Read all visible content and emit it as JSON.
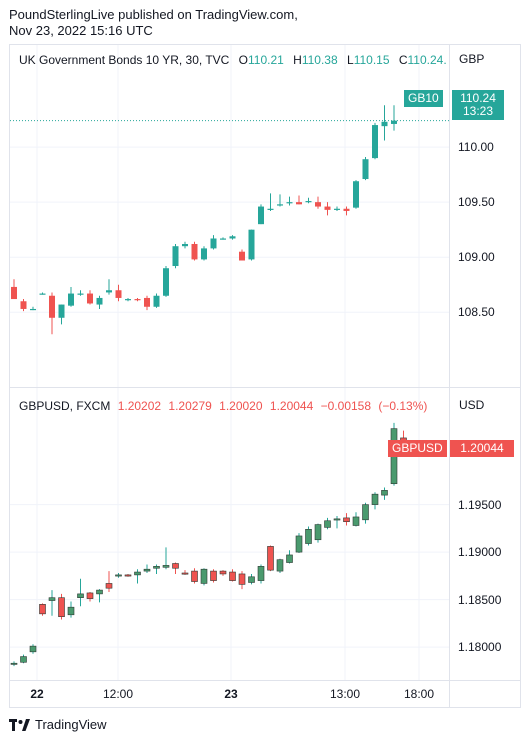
{
  "header": {
    "line1": "PoundSterlingLive published on TradingView.com,",
    "line2": "Nov 23, 2022 15:16 UTC"
  },
  "footer": {
    "brand": "TradingView",
    "logo_icon": "tradingview-logo-icon"
  },
  "colors": {
    "up": "#26a69a",
    "down": "#ef5350",
    "grid": "#f0f3fa",
    "border": "#e0e3eb"
  },
  "x_axis": {
    "labels": [
      {
        "text": "22",
        "bold": true
      },
      {
        "text": "12:00",
        "bold": false
      },
      {
        "text": "23",
        "bold": true
      },
      {
        "text": "13:00",
        "bold": false
      },
      {
        "text": "18:00",
        "bold": false
      }
    ]
  },
  "panes": {
    "top": {
      "symbol": "UK Government Bonds 10 YR, 30, TVC",
      "ohlc": {
        "o_label": "O",
        "o": "110.21",
        "h_label": "H",
        "h": "110.38",
        "l_label": "L",
        "l": "110.15",
        "c_label": "C",
        "c": "110.24..."
      },
      "currency": "GBP",
      "tag": "GB10",
      "last_price": "110.24",
      "countdown": "13:23"
    },
    "bottom": {
      "symbol": "GBPUSD, FXCM",
      "ohlc": {
        "o": "1.20202",
        "h": "1.20279",
        "l": "1.20020",
        "c": "1.20044",
        "chg": "−0.00158",
        "chg_pct": "(−0.13%)"
      },
      "currency": "USD",
      "tag": "GBPUSD",
      "last_price": "1.20044"
    }
  },
  "chart_data": [
    {
      "type": "candlestick",
      "title": "UK Government Bonds 10 YR, 30, TVC",
      "y_ticks": [
        "110.00",
        "109.50",
        "109.00",
        "108.50"
      ],
      "y_tick_values": [
        110.0,
        109.5,
        109.0,
        108.5
      ],
      "ylim": [
        108.23,
        110.7
      ],
      "last_price": 110.24,
      "candles": [
        {
          "o": 108.73,
          "h": 108.8,
          "l": 108.62,
          "c": 108.62
        },
        {
          "o": 108.6,
          "h": 108.62,
          "l": 108.51,
          "c": 108.53
        },
        {
          "o": 108.53,
          "h": 108.55,
          "l": 108.52,
          "c": 108.53
        },
        {
          "o": 108.67,
          "h": 108.68,
          "l": 108.66,
          "c": 108.67
        },
        {
          "o": 108.65,
          "h": 108.68,
          "l": 108.3,
          "c": 108.45
        },
        {
          "o": 108.45,
          "h": 108.57,
          "l": 108.39,
          "c": 108.57
        },
        {
          "o": 108.56,
          "h": 108.73,
          "l": 108.55,
          "c": 108.67
        },
        {
          "o": 108.67,
          "h": 108.7,
          "l": 108.65,
          "c": 108.67
        },
        {
          "o": 108.67,
          "h": 108.7,
          "l": 108.57,
          "c": 108.58
        },
        {
          "o": 108.57,
          "h": 108.65,
          "l": 108.53,
          "c": 108.63
        },
        {
          "o": 108.68,
          "h": 108.8,
          "l": 108.66,
          "c": 108.7
        },
        {
          "o": 108.7,
          "h": 108.75,
          "l": 108.6,
          "c": 108.63
        },
        {
          "o": 108.62,
          "h": 108.63,
          "l": 108.6,
          "c": 108.62
        },
        {
          "o": 108.62,
          "h": 108.63,
          "l": 108.6,
          "c": 108.61
        },
        {
          "o": 108.63,
          "h": 108.65,
          "l": 108.52,
          "c": 108.55
        },
        {
          "o": 108.55,
          "h": 108.67,
          "l": 108.54,
          "c": 108.65
        },
        {
          "o": 108.65,
          "h": 108.92,
          "l": 108.64,
          "c": 108.9
        },
        {
          "o": 108.92,
          "h": 109.12,
          "l": 108.9,
          "c": 109.1
        },
        {
          "o": 109.1,
          "h": 109.14,
          "l": 109.08,
          "c": 109.12
        },
        {
          "o": 109.12,
          "h": 109.14,
          "l": 108.97,
          "c": 108.98
        },
        {
          "o": 108.98,
          "h": 109.1,
          "l": 108.97,
          "c": 109.08
        },
        {
          "o": 109.08,
          "h": 109.2,
          "l": 109.07,
          "c": 109.17
        },
        {
          "o": 109.17,
          "h": 109.18,
          "l": 109.16,
          "c": 109.17
        },
        {
          "o": 109.17,
          "h": 109.2,
          "l": 109.16,
          "c": 109.19
        },
        {
          "o": 109.05,
          "h": 109.07,
          "l": 108.97,
          "c": 108.97
        },
        {
          "o": 108.98,
          "h": 109.25,
          "l": 108.97,
          "c": 109.25
        },
        {
          "o": 109.3,
          "h": 109.48,
          "l": 109.3,
          "c": 109.46
        },
        {
          "o": 109.44,
          "h": 109.58,
          "l": 109.42,
          "c": 109.44
        },
        {
          "o": 109.47,
          "h": 109.57,
          "l": 109.46,
          "c": 109.48
        },
        {
          "o": 109.49,
          "h": 109.55,
          "l": 109.47,
          "c": 109.5
        },
        {
          "o": 109.5,
          "h": 109.56,
          "l": 109.48,
          "c": 109.48
        },
        {
          "o": 109.5,
          "h": 109.54,
          "l": 109.49,
          "c": 109.51
        },
        {
          "o": 109.5,
          "h": 109.55,
          "l": 109.44,
          "c": 109.46
        },
        {
          "o": 109.46,
          "h": 109.5,
          "l": 109.38,
          "c": 109.43
        },
        {
          "o": 109.44,
          "h": 109.46,
          "l": 109.42,
          "c": 109.44
        },
        {
          "o": 109.44,
          "h": 109.46,
          "l": 109.38,
          "c": 109.42
        },
        {
          "o": 109.45,
          "h": 109.7,
          "l": 109.44,
          "c": 109.69
        },
        {
          "o": 109.71,
          "h": 109.91,
          "l": 109.7,
          "c": 109.89
        },
        {
          "o": 109.9,
          "h": 110.22,
          "l": 109.89,
          "c": 110.2
        },
        {
          "o": 110.19,
          "h": 110.38,
          "l": 110.06,
          "c": 110.23
        },
        {
          "o": 110.21,
          "h": 110.38,
          "l": 110.15,
          "c": 110.24
        }
      ]
    },
    {
      "type": "candlestick",
      "title": "GBPUSD, FXCM",
      "y_ticks": [
        "1.19500",
        "1.19000",
        "1.18500",
        "1.18000"
      ],
      "y_tick_values": [
        1.195,
        1.19,
        1.185,
        1.18
      ],
      "ylim": [
        1.17706,
        1.20454
      ],
      "last_price": 1.20044,
      "candles": [
        {
          "o": 1.1782,
          "h": 1.1785,
          "l": 1.178,
          "c": 1.1783
        },
        {
          "o": 1.1784,
          "h": 1.1792,
          "l": 1.1783,
          "c": 1.179
        },
        {
          "o": 1.1795,
          "h": 1.1803,
          "l": 1.1793,
          "c": 1.1801
        },
        {
          "o": 1.1845,
          "h": 1.1846,
          "l": 1.1833,
          "c": 1.1835
        },
        {
          "o": 1.1849,
          "h": 1.186,
          "l": 1.1833,
          "c": 1.1852
        },
        {
          "o": 1.1852,
          "h": 1.1856,
          "l": 1.1829,
          "c": 1.1832
        },
        {
          "o": 1.1834,
          "h": 1.1848,
          "l": 1.1831,
          "c": 1.1842
        },
        {
          "o": 1.1852,
          "h": 1.1872,
          "l": 1.1843,
          "c": 1.1856
        },
        {
          "o": 1.1857,
          "h": 1.1858,
          "l": 1.1848,
          "c": 1.1851
        },
        {
          "o": 1.1856,
          "h": 1.1861,
          "l": 1.1847,
          "c": 1.186
        },
        {
          "o": 1.1867,
          "h": 1.188,
          "l": 1.1858,
          "c": 1.1862
        },
        {
          "o": 1.1875,
          "h": 1.1878,
          "l": 1.1873,
          "c": 1.1876
        },
        {
          "o": 1.1876,
          "h": 1.1877,
          "l": 1.1874,
          "c": 1.1875
        },
        {
          "o": 1.1876,
          "h": 1.1882,
          "l": 1.1867,
          "c": 1.1879
        },
        {
          "o": 1.188,
          "h": 1.1887,
          "l": 1.1878,
          "c": 1.1882
        },
        {
          "o": 1.1883,
          "h": 1.1887,
          "l": 1.1877,
          "c": 1.1885
        },
        {
          "o": 1.1884,
          "h": 1.1905,
          "l": 1.1882,
          "c": 1.1886
        },
        {
          "o": 1.1888,
          "h": 1.1889,
          "l": 1.1877,
          "c": 1.1883
        },
        {
          "o": 1.1878,
          "h": 1.1881,
          "l": 1.1876,
          "c": 1.1877
        },
        {
          "o": 1.188,
          "h": 1.1883,
          "l": 1.1867,
          "c": 1.1869
        },
        {
          "o": 1.1867,
          "h": 1.1883,
          "l": 1.1865,
          "c": 1.1882
        },
        {
          "o": 1.188,
          "h": 1.1882,
          "l": 1.1868,
          "c": 1.187
        },
        {
          "o": 1.188,
          "h": 1.1881,
          "l": 1.1875,
          "c": 1.1877
        },
        {
          "o": 1.1879,
          "h": 1.1882,
          "l": 1.1869,
          "c": 1.187
        },
        {
          "o": 1.1877,
          "h": 1.188,
          "l": 1.1861,
          "c": 1.1866
        },
        {
          "o": 1.1868,
          "h": 1.1877,
          "l": 1.1866,
          "c": 1.1874
        },
        {
          "o": 1.187,
          "h": 1.1887,
          "l": 1.1867,
          "c": 1.1885
        },
        {
          "o": 1.1906,
          "h": 1.1907,
          "l": 1.188,
          "c": 1.1881
        },
        {
          "o": 1.188,
          "h": 1.1893,
          "l": 1.1878,
          "c": 1.1892
        },
        {
          "o": 1.1889,
          "h": 1.1902,
          "l": 1.1888,
          "c": 1.1897
        },
        {
          "o": 1.19,
          "h": 1.192,
          "l": 1.1899,
          "c": 1.1917
        },
        {
          "o": 1.1909,
          "h": 1.1927,
          "l": 1.1907,
          "c": 1.1924
        },
        {
          "o": 1.1913,
          "h": 1.193,
          "l": 1.191,
          "c": 1.1929
        },
        {
          "o": 1.1926,
          "h": 1.1936,
          "l": 1.1924,
          "c": 1.1933
        },
        {
          "o": 1.1934,
          "h": 1.1938,
          "l": 1.1925,
          "c": 1.1935
        },
        {
          "o": 1.1936,
          "h": 1.1941,
          "l": 1.1928,
          "c": 1.1932
        },
        {
          "o": 1.1928,
          "h": 1.1942,
          "l": 1.1927,
          "c": 1.1937
        },
        {
          "o": 1.1934,
          "h": 1.1952,
          "l": 1.193,
          "c": 1.195
        },
        {
          "o": 1.195,
          "h": 1.1963,
          "l": 1.1945,
          "c": 1.1961
        },
        {
          "o": 1.196,
          "h": 1.1968,
          "l": 1.1955,
          "c": 1.1965
        },
        {
          "o": 1.1972,
          "h": 1.2036,
          "l": 1.197,
          "c": 1.203
        },
        {
          "o": 1.20202,
          "h": 1.20279,
          "l": 1.2002,
          "c": 1.20044
        }
      ]
    }
  ]
}
